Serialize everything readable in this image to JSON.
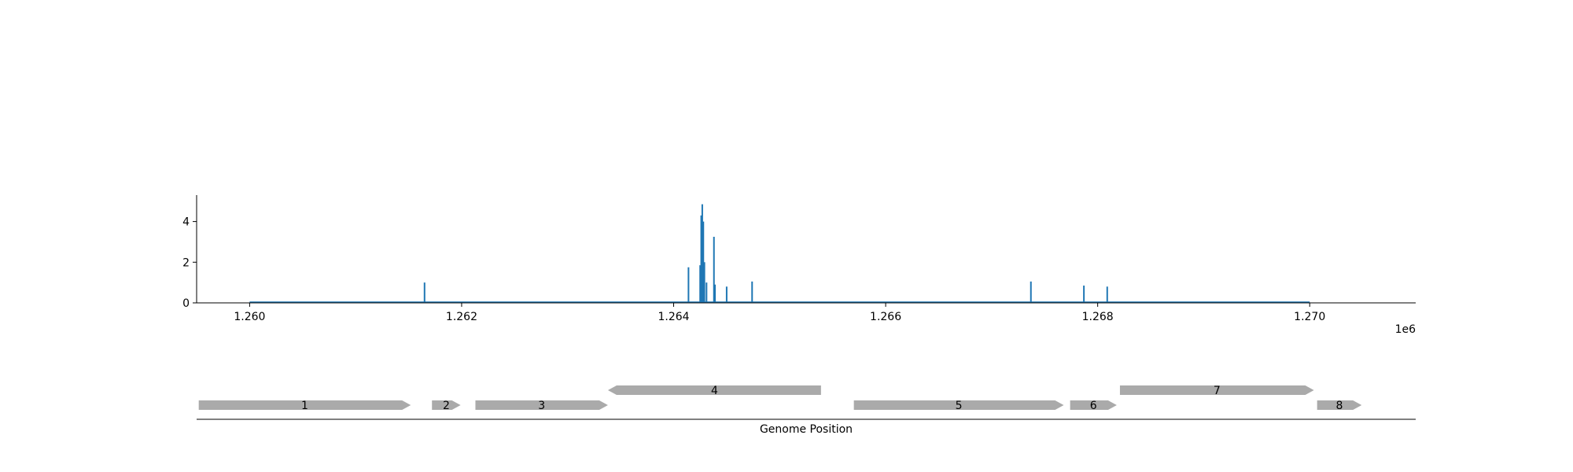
{
  "chart_data": [
    {
      "type": "bar",
      "xlim": [
        1259500,
        1271000
      ],
      "ylim": [
        0,
        5.3
      ],
      "x_offset_label": "1e6",
      "x_ticks": [
        1260000,
        1262000,
        1264000,
        1266000,
        1268000,
        1270000
      ],
      "x_tick_labels": [
        "1.260",
        "1.262",
        "1.264",
        "1.266",
        "1.268",
        "1.270"
      ],
      "y_ticks": [
        0,
        2,
        4
      ],
      "y_tick_labels": [
        "0",
        "2",
        "4"
      ],
      "baseline_range": [
        1260000,
        1270000
      ],
      "line_color": "#1f77b4",
      "points": [
        {
          "x": 1261650,
          "y": 1.0
        },
        {
          "x": 1264140,
          "y": 1.75
        },
        {
          "x": 1264250,
          "y": 1.85
        },
        {
          "x": 1264260,
          "y": 4.3
        },
        {
          "x": 1264270,
          "y": 4.85
        },
        {
          "x": 1264280,
          "y": 4.0
        },
        {
          "x": 1264290,
          "y": 2.0
        },
        {
          "x": 1264310,
          "y": 1.0
        },
        {
          "x": 1264380,
          "y": 3.25
        },
        {
          "x": 1264390,
          "y": 0.9
        },
        {
          "x": 1264500,
          "y": 0.8
        },
        {
          "x": 1264740,
          "y": 1.05
        },
        {
          "x": 1267370,
          "y": 1.05
        },
        {
          "x": 1267870,
          "y": 0.85
        },
        {
          "x": 1268090,
          "y": 0.8
        }
      ]
    },
    {
      "type": "gene-map",
      "xlabel": "Genome Position",
      "xlim": [
        1259500,
        1271000
      ],
      "color": "#aaaaaa",
      "genes": [
        {
          "label": "1",
          "start": 1259520,
          "end": 1261520,
          "strand": "+",
          "row": 0
        },
        {
          "label": "2",
          "start": 1261720,
          "end": 1261990,
          "strand": "+",
          "row": 0
        },
        {
          "label": "3",
          "start": 1262130,
          "end": 1263380,
          "strand": "+",
          "row": 0
        },
        {
          "label": "4",
          "start": 1263380,
          "end": 1265390,
          "strand": "-",
          "row": 1
        },
        {
          "label": "5",
          "start": 1265700,
          "end": 1267680,
          "strand": "+",
          "row": 0
        },
        {
          "label": "6",
          "start": 1267740,
          "end": 1268180,
          "strand": "+",
          "row": 0
        },
        {
          "label": "7",
          "start": 1268210,
          "end": 1270040,
          "strand": "+",
          "row": 1
        },
        {
          "label": "8",
          "start": 1270070,
          "end": 1270490,
          "strand": "+",
          "row": 0
        }
      ]
    }
  ]
}
